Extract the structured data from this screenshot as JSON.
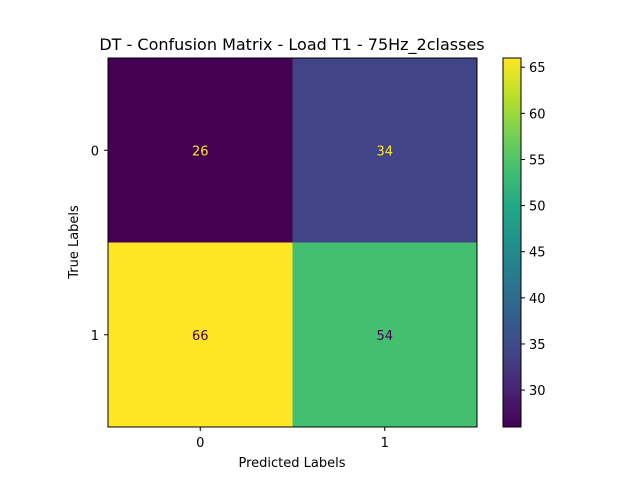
{
  "chart_data": {
    "type": "heatmap",
    "title": "DT - Confusion Matrix - Load T1 - 75Hz_2classes",
    "xlabel": "Predicted Labels",
    "ylabel": "True Labels",
    "x_categories": [
      "0",
      "1"
    ],
    "y_categories": [
      "0",
      "1"
    ],
    "matrix": [
      [
        26,
        34
      ],
      [
        66,
        54
      ]
    ],
    "colormap": "viridis",
    "colorbar": {
      "min": 26,
      "max": 66,
      "ticks": [
        30,
        35,
        40,
        45,
        50,
        55,
        60,
        65
      ],
      "tick_labels": [
        "30",
        "35",
        "40",
        "45",
        "50",
        "55",
        "60",
        "65"
      ]
    },
    "label_colors": {
      "on_dark": "#fde725",
      "on_light": "#440154"
    }
  }
}
